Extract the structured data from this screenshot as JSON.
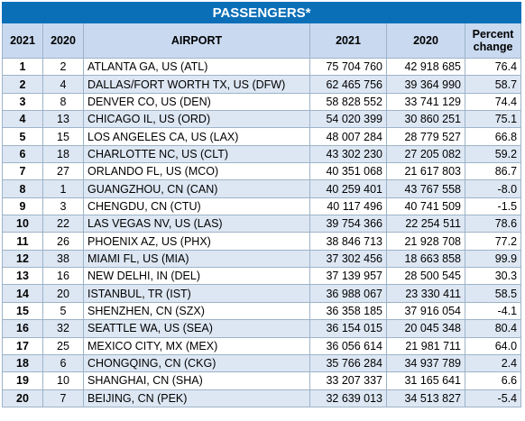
{
  "title": "PASSENGERS*",
  "headers": {
    "rank2021": "2021",
    "rank2020": "2020",
    "airport": "AIRPORT",
    "pax2021": "2021",
    "pax2020": "2020",
    "change_line1": "Percent",
    "change_line2": "change"
  },
  "rows": [
    {
      "r21": "1",
      "r20": "2",
      "airport": "ATLANTA GA, US (ATL)",
      "p21": "75 704 760",
      "p20": "42 918 685",
      "pct": "76.4"
    },
    {
      "r21": "2",
      "r20": "4",
      "airport": "DALLAS/FORT WORTH TX, US (DFW)",
      "p21": "62 465 756",
      "p20": "39 364 990",
      "pct": "58.7"
    },
    {
      "r21": "3",
      "r20": "8",
      "airport": "DENVER CO, US (DEN)",
      "p21": "58 828 552",
      "p20": "33 741 129",
      "pct": "74.4"
    },
    {
      "r21": "4",
      "r20": "13",
      "airport": "CHICAGO IL, US (ORD)",
      "p21": "54 020 399",
      "p20": "30 860 251",
      "pct": "75.1"
    },
    {
      "r21": "5",
      "r20": "15",
      "airport": "LOS ANGELES CA, US (LAX)",
      "p21": "48 007 284",
      "p20": "28 779 527",
      "pct": "66.8"
    },
    {
      "r21": "6",
      "r20": "18",
      "airport": "CHARLOTTE NC, US (CLT)",
      "p21": "43 302 230",
      "p20": "27 205 082",
      "pct": "59.2"
    },
    {
      "r21": "7",
      "r20": "27",
      "airport": "ORLANDO FL, US (MCO)",
      "p21": "40 351 068",
      "p20": "21 617 803",
      "pct": "86.7"
    },
    {
      "r21": "8",
      "r20": "1",
      "airport": "GUANGZHOU, CN (CAN)",
      "p21": "40 259 401",
      "p20": "43 767 558",
      "pct": "-8.0"
    },
    {
      "r21": "9",
      "r20": "3",
      "airport": "CHENGDU, CN (CTU)",
      "p21": "40 117 496",
      "p20": "40 741 509",
      "pct": "-1.5"
    },
    {
      "r21": "10",
      "r20": "22",
      "airport": "LAS VEGAS NV, US (LAS)",
      "p21": "39 754 366",
      "p20": "22 254 511",
      "pct": "78.6"
    },
    {
      "r21": "11",
      "r20": "26",
      "airport": "PHOENIX AZ, US (PHX)",
      "p21": "38 846 713",
      "p20": "21 928 708",
      "pct": "77.2"
    },
    {
      "r21": "12",
      "r20": "38",
      "airport": "MIAMI FL, US (MIA)",
      "p21": "37 302 456",
      "p20": "18 663 858",
      "pct": "99.9"
    },
    {
      "r21": "13",
      "r20": "16",
      "airport": "NEW DELHI, IN (DEL)",
      "p21": "37 139 957",
      "p20": "28 500 545",
      "pct": "30.3"
    },
    {
      "r21": "14",
      "r20": "20",
      "airport": "ISTANBUL, TR (IST)",
      "p21": "36 988 067",
      "p20": "23 330 411",
      "pct": "58.5"
    },
    {
      "r21": "15",
      "r20": "5",
      "airport": "SHENZHEN, CN (SZX)",
      "p21": "36 358 185",
      "p20": "37 916 054",
      "pct": "-4.1"
    },
    {
      "r21": "16",
      "r20": "32",
      "airport": "SEATTLE WA, US (SEA)",
      "p21": "36 154 015",
      "p20": "20 045 348",
      "pct": "80.4"
    },
    {
      "r21": "17",
      "r20": "25",
      "airport": "MEXICO CITY, MX (MEX)",
      "p21": "36 056 614",
      "p20": "21 981 711",
      "pct": "64.0"
    },
    {
      "r21": "18",
      "r20": "6",
      "airport": "CHONGQING, CN (CKG)",
      "p21": "35 766 284",
      "p20": "34 937 789",
      "pct": "2.4"
    },
    {
      "r21": "19",
      "r20": "10",
      "airport": "SHANGHAI, CN (SHA)",
      "p21": "33 207 337",
      "p20": "31 165 641",
      "pct": "6.6"
    },
    {
      "r21": "20",
      "r20": "7",
      "airport": "BEIJING, CN (PEK)",
      "p21": "32 639 013",
      "p20": "34 513 827",
      "pct": "-5.4"
    }
  ]
}
